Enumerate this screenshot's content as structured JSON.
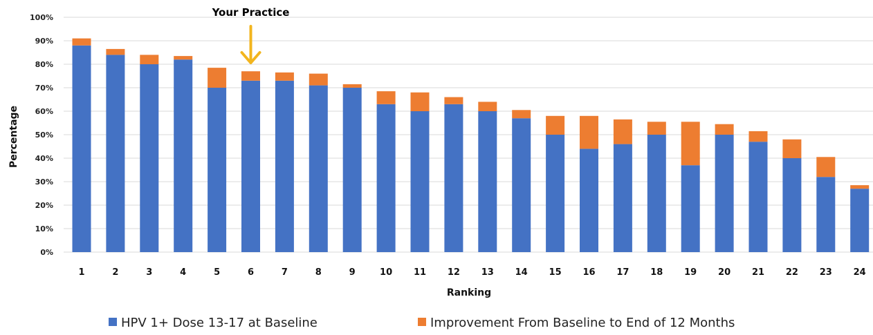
{
  "chart_data": {
    "type": "bar",
    "stacked": true,
    "categories": [
      "1",
      "2",
      "3",
      "4",
      "5",
      "6",
      "7",
      "8",
      "9",
      "10",
      "11",
      "12",
      "13",
      "14",
      "15",
      "16",
      "17",
      "18",
      "19",
      "20",
      "21",
      "22",
      "23",
      "24"
    ],
    "series": [
      {
        "name": "HPV 1+ Dose 13-17 at Baseline",
        "color": "#4472c4",
        "values": [
          88,
          84,
          80,
          82,
          70,
          73,
          73,
          71,
          70,
          63,
          60,
          63,
          60,
          57,
          50,
          44,
          46,
          50,
          37,
          50,
          47,
          40,
          32,
          27
        ]
      },
      {
        "name": "Improvement From Baseline to End of 12 Months",
        "color": "#ed7d31",
        "values": [
          3,
          2.5,
          4,
          1.5,
          8.5,
          4,
          3.5,
          5,
          1.5,
          5.5,
          8,
          3,
          4,
          3.5,
          8,
          14,
          10.5,
          5.5,
          18.5,
          4.5,
          4.5,
          8,
          8.5,
          1.5
        ]
      }
    ],
    "xlabel": "Ranking",
    "ylabel": "Percentage",
    "ylim": [
      0,
      100
    ],
    "yticks": [
      "0%",
      "10%",
      "20%",
      "30%",
      "40%",
      "50%",
      "60%",
      "70%",
      "80%",
      "90%",
      "100%"
    ],
    "grid": true,
    "legend": "bottom",
    "annotation": {
      "text": "Your Practice",
      "category": "6",
      "arrow_color": "#f2b51e"
    }
  }
}
